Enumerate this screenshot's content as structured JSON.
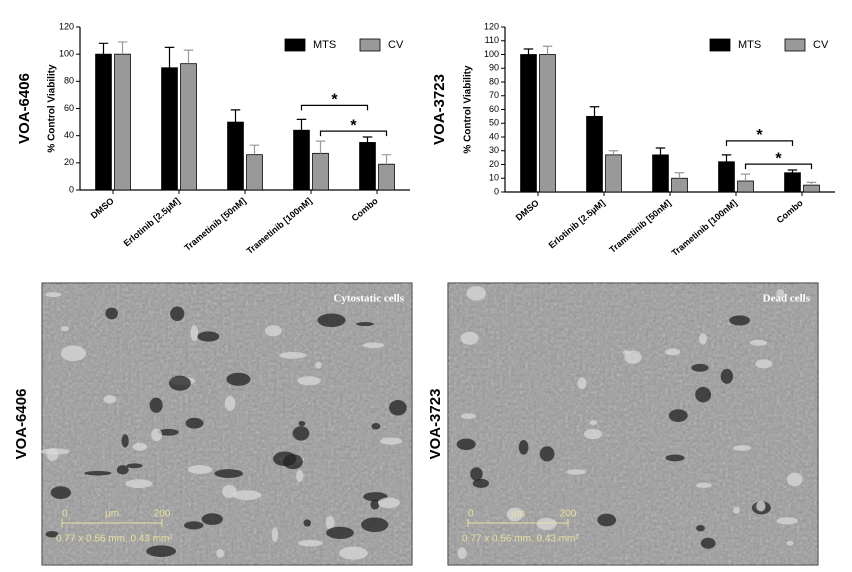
{
  "chart_data": [
    {
      "type": "bar",
      "title": "VOA-6406",
      "ylabel": "% Control Viability",
      "categories": [
        "DMSO",
        "Erlotinib [2.5µM]",
        "Trametinib [50nM]",
        "Trametinib [100nM]",
        "Combo"
      ],
      "series": [
        {
          "name": "MTS",
          "color": "#000000",
          "values": [
            100,
            90,
            50,
            44,
            35
          ],
          "errors": [
            8,
            15,
            9,
            8,
            4
          ]
        },
        {
          "name": "CV",
          "color": "#999999",
          "values": [
            100,
            93,
            26,
            27,
            19
          ],
          "errors": [
            9,
            10,
            7,
            9,
            7
          ]
        }
      ],
      "ylim": [
        0,
        120
      ],
      "yticks": [
        0,
        20,
        40,
        60,
        80,
        100,
        120
      ],
      "legend": "upper right",
      "annotations": [
        "*",
        "*"
      ]
    },
    {
      "type": "bar",
      "title": "VOA-3723",
      "ylabel": "% Control Viability",
      "categories": [
        "DMSO",
        "Erlotinib [2.5µM]",
        "Trametinib [50nM]",
        "Trametinib [100nM]",
        "Combo"
      ],
      "series": [
        {
          "name": "MTS",
          "color": "#000000",
          "values": [
            100,
            55,
            27,
            22,
            14
          ],
          "errors": [
            4,
            7,
            5,
            5,
            2
          ]
        },
        {
          "name": "CV",
          "color": "#999999",
          "values": [
            100,
            27,
            10,
            8,
            5
          ],
          "errors": [
            6,
            3,
            4,
            5,
            2
          ]
        }
      ],
      "ylim": [
        0,
        120
      ],
      "yticks": [
        0,
        10,
        20,
        30,
        40,
        50,
        60,
        70,
        80,
        90,
        100,
        110,
        120
      ],
      "legend": "upper right",
      "annotations": [
        "*",
        "*"
      ]
    }
  ],
  "images": [
    {
      "label": "VOA-6406",
      "caption": "Cytostatic cells",
      "scale_start": "0",
      "scale_unit": "µm",
      "scale_end": "200",
      "dims": "0.77 x 0.56 mm, 0.43 mm²"
    },
    {
      "label": "VOA-3723",
      "caption": "Dead cells",
      "scale_start": "0",
      "scale_unit": "µm",
      "scale_end": "200",
      "dims": "0.77 x 0.56 mm. 0.43 mm²"
    }
  ]
}
